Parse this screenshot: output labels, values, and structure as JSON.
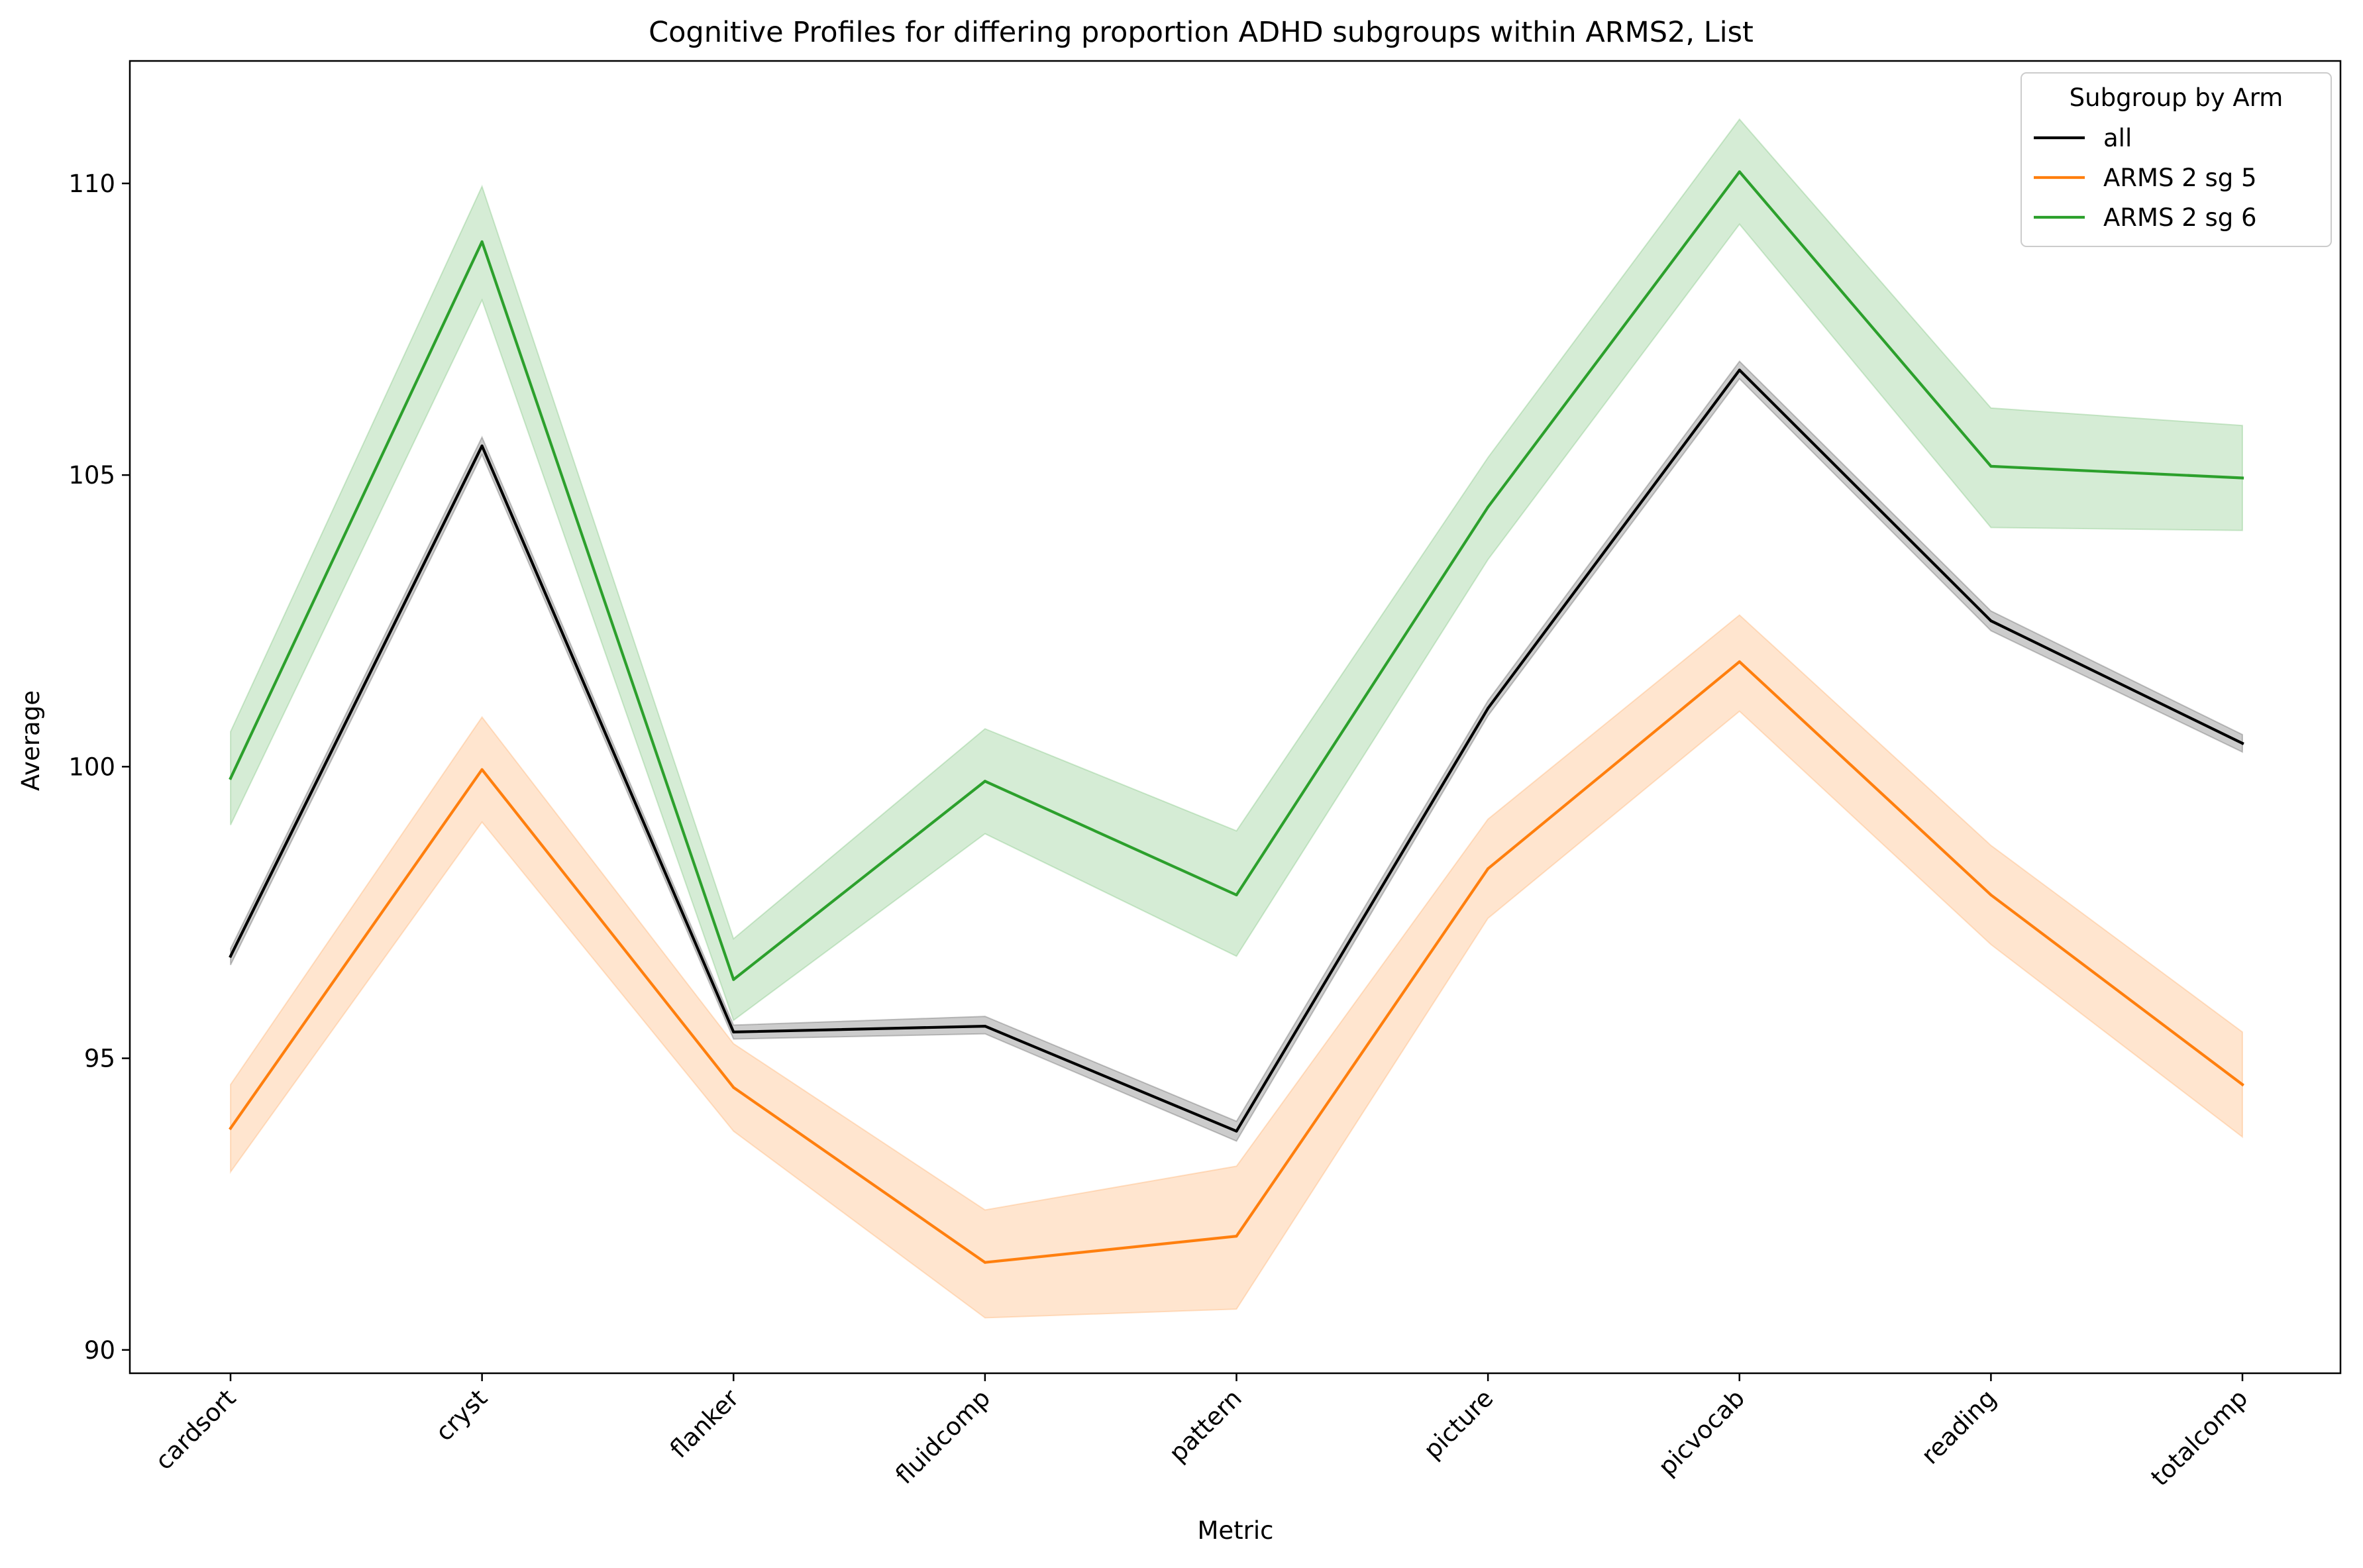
{
  "chart_data": {
    "type": "line",
    "title": "Cognitive Profiles for differing proportion ADHD subgroups within ARMS2, List",
    "xlabel": "Metric",
    "ylabel": "Average",
    "categories": [
      "cardsort",
      "cryst",
      "flanker",
      "fluidcomp",
      "pattern",
      "picture",
      "picvocab",
      "reading",
      "totalcomp"
    ],
    "ylim": [
      89.6,
      112.1
    ],
    "yticks": [
      90,
      95,
      100,
      105,
      110
    ],
    "grid": false,
    "legend": {
      "title": "Subgroup by Arm",
      "placement": "top-right"
    },
    "series": [
      {
        "name": "all",
        "color": "#000000",
        "values": [
          96.75,
          105.5,
          95.45,
          95.55,
          93.75,
          101.0,
          106.8,
          102.5,
          100.4
        ],
        "lower": [
          96.6,
          105.35,
          95.33,
          95.42,
          93.58,
          100.87,
          106.65,
          102.33,
          100.25
        ],
        "upper": [
          96.88,
          105.65,
          95.57,
          95.72,
          93.92,
          101.13,
          106.95,
          102.67,
          100.55
        ]
      },
      {
        "name": "ARMS 2 sg 5",
        "color": "#ff7f0e",
        "values": [
          93.8,
          99.95,
          94.5,
          91.5,
          91.95,
          98.25,
          101.8,
          97.8,
          94.55
        ],
        "lower": [
          93.05,
          99.05,
          93.75,
          90.55,
          90.7,
          97.4,
          100.95,
          96.95,
          93.65
        ],
        "upper": [
          94.55,
          100.85,
          95.25,
          92.4,
          93.15,
          99.1,
          102.6,
          98.65,
          95.45
        ]
      },
      {
        "name": "ARMS 2 sg 6",
        "color": "#2ca02c",
        "values": [
          99.8,
          109.0,
          96.35,
          99.75,
          97.8,
          104.45,
          110.2,
          105.15,
          104.95
        ],
        "lower": [
          99.0,
          108.0,
          95.65,
          98.85,
          96.75,
          103.55,
          109.3,
          104.1,
          104.05
        ],
        "upper": [
          100.6,
          109.95,
          97.05,
          100.65,
          98.9,
          105.3,
          111.1,
          106.15,
          105.85
        ]
      }
    ]
  }
}
